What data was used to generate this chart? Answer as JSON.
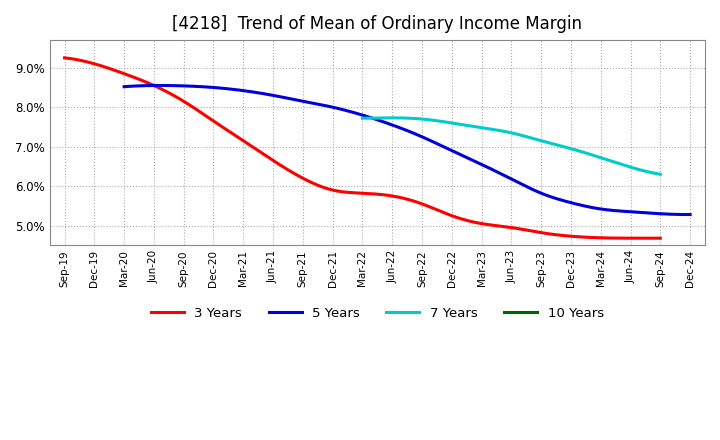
{
  "title": "[4218]  Trend of Mean of Ordinary Income Margin",
  "title_fontsize": 12,
  "background_color": "#ffffff",
  "plot_bg_color": "#ffffff",
  "grid_color": "#aaaaaa",
  "ylim": [
    0.045,
    0.097
  ],
  "yticks": [
    0.05,
    0.06,
    0.07,
    0.08,
    0.09
  ],
  "ytick_labels": [
    "5.0%",
    "6.0%",
    "7.0%",
    "8.0%",
    "9.0%"
  ],
  "xtick_labels": [
    "Sep-19",
    "Dec-19",
    "Mar-20",
    "Jun-20",
    "Sep-20",
    "Dec-20",
    "Mar-21",
    "Jun-21",
    "Sep-21",
    "Dec-21",
    "Mar-22",
    "Jun-22",
    "Sep-22",
    "Dec-22",
    "Mar-23",
    "Jun-23",
    "Sep-23",
    "Dec-23",
    "Mar-24",
    "Jun-24",
    "Sep-24",
    "Dec-24"
  ],
  "series": [
    {
      "label": "3 Years",
      "color": "#ff0000",
      "linewidth": 2.2,
      "control_x": [
        0,
        1,
        2,
        3,
        4,
        5,
        6,
        7,
        8,
        9,
        10,
        11,
        12,
        13,
        14,
        15,
        16,
        17,
        18,
        19,
        20
      ],
      "control_y": [
        0.0925,
        0.091,
        0.0885,
        0.0855,
        0.0815,
        0.0765,
        0.0715,
        0.0665,
        0.062,
        0.059,
        0.0582,
        0.0575,
        0.0555,
        0.0525,
        0.0505,
        0.0495,
        0.0482,
        0.0473,
        0.0469,
        0.0468,
        0.0468
      ]
    },
    {
      "label": "5 Years",
      "color": "#0000dd",
      "linewidth": 2.2,
      "control_x": [
        2,
        3,
        4,
        5,
        6,
        7,
        8,
        9,
        10,
        11,
        12,
        13,
        14,
        15,
        16,
        17,
        18,
        19,
        20,
        21
      ],
      "control_y": [
        0.0852,
        0.0855,
        0.0854,
        0.085,
        0.0842,
        0.083,
        0.0815,
        0.08,
        0.078,
        0.0755,
        0.0725,
        0.069,
        0.0655,
        0.0618,
        0.0582,
        0.0558,
        0.0542,
        0.0535,
        0.053,
        0.0528
      ]
    },
    {
      "label": "7 Years",
      "color": "#00cccc",
      "linewidth": 2.2,
      "control_x": [
        10,
        11,
        12,
        13,
        14,
        15,
        16,
        17,
        18,
        19,
        20
      ],
      "control_y": [
        0.0772,
        0.0773,
        0.077,
        0.076,
        0.0748,
        0.0735,
        0.0715,
        0.0695,
        0.0672,
        0.0648,
        0.063
      ]
    },
    {
      "label": "10 Years",
      "color": "#006600",
      "linewidth": 2.2,
      "control_x": [],
      "control_y": []
    }
  ]
}
